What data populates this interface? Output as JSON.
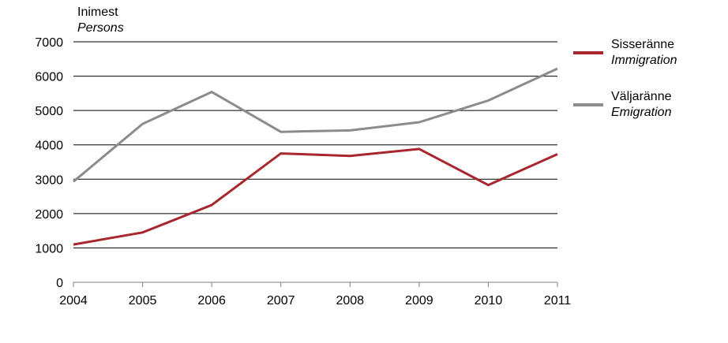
{
  "chart_data": {
    "type": "line",
    "ylabel": "Inimest",
    "ylabel_sub": "Persons",
    "ylim": [
      0,
      7000
    ],
    "yticks": [
      0,
      1000,
      2000,
      3000,
      4000,
      5000,
      6000,
      7000
    ],
    "categories": [
      "2004",
      "2005",
      "2006",
      "2007",
      "2008",
      "2009",
      "2010",
      "2011"
    ],
    "grid": "horizontal",
    "legend_position": "right",
    "series": [
      {
        "name": "Sisseränne",
        "name_sub": "Immigration",
        "color": "#a8262e",
        "values": [
          1100,
          1450,
          2250,
          3750,
          3680,
          3880,
          2830,
          3730
        ]
      },
      {
        "name": "Väljaränne",
        "name_sub": "Emigration",
        "color": "#8c8c8c",
        "values": [
          2930,
          4610,
          5540,
          4380,
          4420,
          4660,
          5290,
          6220
        ]
      }
    ]
  }
}
